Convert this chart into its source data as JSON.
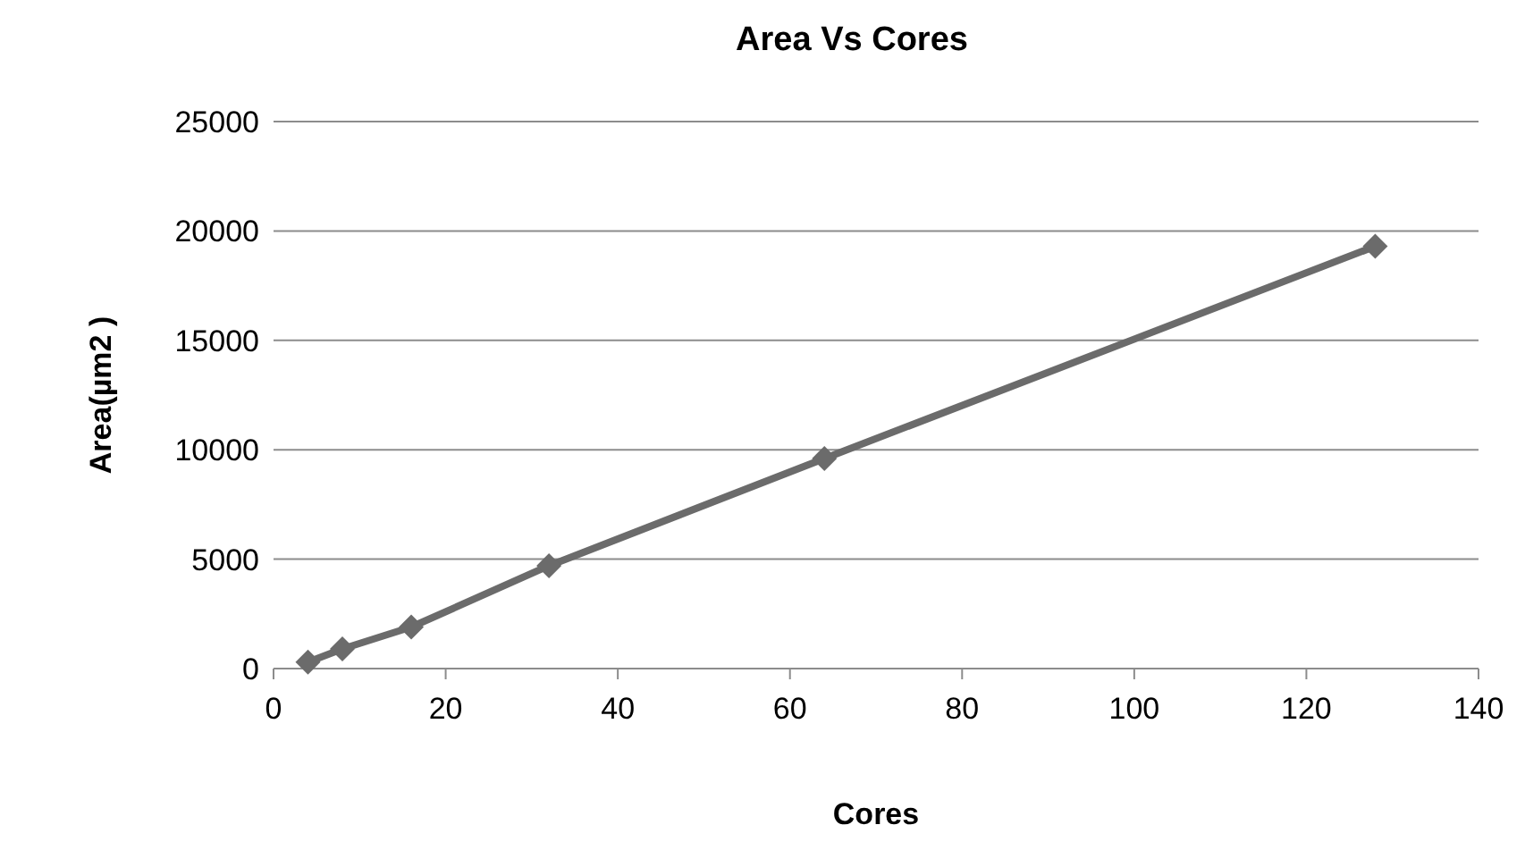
{
  "chart_data": {
    "type": "line",
    "title": "Area Vs Cores",
    "xlabel": "Cores",
    "ylabel": "Area(µm2 )",
    "x": [
      4,
      8,
      16,
      32,
      64,
      128
    ],
    "series": [
      {
        "color": "#6b6b6b",
        "values": [
          300,
          900,
          1900,
          4700,
          9600,
          19300
        ]
      }
    ],
    "xlim": [
      0,
      140
    ],
    "xticks": [
      0,
      20,
      40,
      60,
      80,
      100,
      120,
      140
    ],
    "ylim": [
      0,
      25000
    ],
    "yticks": [
      0,
      5000,
      10000,
      15000,
      20000,
      25000
    ],
    "grid": "y",
    "marker": "diamond"
  }
}
